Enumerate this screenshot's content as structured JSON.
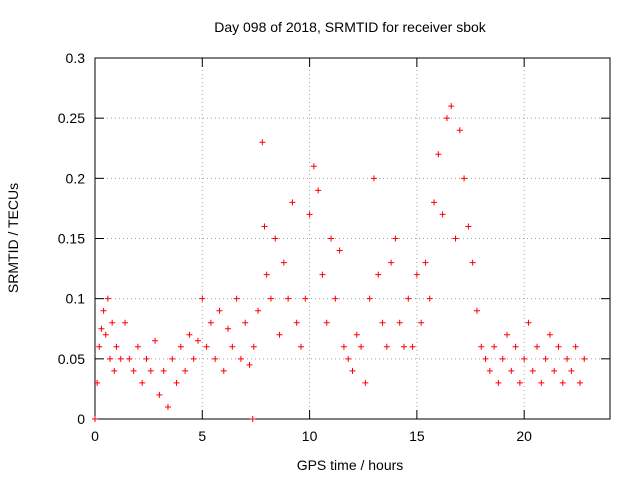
{
  "chart_data": {
    "type": "scatter",
    "title": "Day 098 of 2018, SRMTID for receiver sbok",
    "xlabel": "GPS time / hours",
    "ylabel": "SRMTID / TECUs",
    "xlim": [
      0,
      24
    ],
    "ylim": [
      0,
      0.3
    ],
    "xticks": [
      0,
      5,
      10,
      15,
      20
    ],
    "xtick_labels": [
      "0",
      "5",
      "10",
      "15",
      "20"
    ],
    "yticks": [
      0,
      0.05,
      0.1,
      0.15,
      0.2,
      0.25,
      0.3
    ],
    "ytick_labels": [
      "0",
      "0.05",
      "0.1",
      "0.15",
      "0.2",
      "0.25",
      "0.3"
    ],
    "grid": true,
    "marker": "+",
    "color": "#ff0000",
    "series": [
      {
        "name": "SRMTID",
        "points": [
          [
            0.0,
            0.0
          ],
          [
            0.1,
            0.03
          ],
          [
            0.2,
            0.06
          ],
          [
            0.3,
            0.075
          ],
          [
            0.4,
            0.09
          ],
          [
            0.5,
            0.07
          ],
          [
            0.6,
            0.1
          ],
          [
            0.7,
            0.05
          ],
          [
            0.8,
            0.08
          ],
          [
            0.9,
            0.04
          ],
          [
            1.0,
            0.06
          ],
          [
            1.2,
            0.05
          ],
          [
            1.4,
            0.08
          ],
          [
            1.6,
            0.05
          ],
          [
            1.8,
            0.04
          ],
          [
            2.0,
            0.06
          ],
          [
            2.2,
            0.03
          ],
          [
            2.4,
            0.05
          ],
          [
            2.6,
            0.04
          ],
          [
            2.8,
            0.065
          ],
          [
            3.0,
            0.02
          ],
          [
            3.2,
            0.04
          ],
          [
            3.4,
            0.01
          ],
          [
            3.6,
            0.05
          ],
          [
            3.8,
            0.03
          ],
          [
            4.0,
            0.06
          ],
          [
            4.2,
            0.04
          ],
          [
            4.4,
            0.07
          ],
          [
            4.6,
            0.05
          ],
          [
            4.8,
            0.065
          ],
          [
            5.0,
            0.1
          ],
          [
            5.2,
            0.06
          ],
          [
            5.4,
            0.08
          ],
          [
            5.6,
            0.05
          ],
          [
            5.8,
            0.09
          ],
          [
            6.0,
            0.04
          ],
          [
            6.2,
            0.075
          ],
          [
            6.4,
            0.06
          ],
          [
            6.6,
            0.1
          ],
          [
            6.8,
            0.05
          ],
          [
            7.0,
            0.08
          ],
          [
            7.2,
            0.045
          ],
          [
            7.35,
            0.0
          ],
          [
            7.4,
            0.06
          ],
          [
            7.6,
            0.09
          ],
          [
            7.8,
            0.23
          ],
          [
            7.9,
            0.16
          ],
          [
            8.0,
            0.12
          ],
          [
            8.2,
            0.1
          ],
          [
            8.4,
            0.15
          ],
          [
            8.6,
            0.07
          ],
          [
            8.8,
            0.13
          ],
          [
            9.0,
            0.1
          ],
          [
            9.2,
            0.18
          ],
          [
            9.4,
            0.08
          ],
          [
            9.6,
            0.06
          ],
          [
            9.8,
            0.1
          ],
          [
            10.0,
            0.17
          ],
          [
            10.2,
            0.21
          ],
          [
            10.4,
            0.19
          ],
          [
            10.6,
            0.12
          ],
          [
            10.8,
            0.08
          ],
          [
            11.0,
            0.15
          ],
          [
            11.2,
            0.1
          ],
          [
            11.4,
            0.14
          ],
          [
            11.6,
            0.06
          ],
          [
            11.8,
            0.05
          ],
          [
            12.0,
            0.04
          ],
          [
            12.2,
            0.07
          ],
          [
            12.4,
            0.06
          ],
          [
            12.6,
            0.03
          ],
          [
            12.8,
            0.1
          ],
          [
            13.0,
            0.2
          ],
          [
            13.2,
            0.12
          ],
          [
            13.4,
            0.08
          ],
          [
            13.6,
            0.06
          ],
          [
            13.8,
            0.13
          ],
          [
            14.0,
            0.15
          ],
          [
            14.2,
            0.08
          ],
          [
            14.4,
            0.06
          ],
          [
            14.6,
            0.1
          ],
          [
            14.8,
            0.06
          ],
          [
            15.0,
            0.12
          ],
          [
            15.2,
            0.08
          ],
          [
            15.4,
            0.13
          ],
          [
            15.6,
            0.1
          ],
          [
            15.8,
            0.18
          ],
          [
            16.0,
            0.22
          ],
          [
            16.2,
            0.17
          ],
          [
            16.4,
            0.25
          ],
          [
            16.6,
            0.26
          ],
          [
            16.8,
            0.15
          ],
          [
            17.0,
            0.24
          ],
          [
            17.2,
            0.2
          ],
          [
            17.4,
            0.16
          ],
          [
            17.6,
            0.13
          ],
          [
            17.8,
            0.09
          ],
          [
            18.0,
            0.06
          ],
          [
            18.2,
            0.05
          ],
          [
            18.4,
            0.04
          ],
          [
            18.6,
            0.06
          ],
          [
            18.8,
            0.03
          ],
          [
            19.0,
            0.05
          ],
          [
            19.2,
            0.07
          ],
          [
            19.4,
            0.04
          ],
          [
            19.6,
            0.06
          ],
          [
            19.8,
            0.03
          ],
          [
            20.0,
            0.05
          ],
          [
            20.2,
            0.08
          ],
          [
            20.4,
            0.04
          ],
          [
            20.6,
            0.06
          ],
          [
            20.8,
            0.03
          ],
          [
            21.0,
            0.05
          ],
          [
            21.2,
            0.07
          ],
          [
            21.4,
            0.04
          ],
          [
            21.6,
            0.06
          ],
          [
            21.8,
            0.03
          ],
          [
            22.0,
            0.05
          ],
          [
            22.2,
            0.04
          ],
          [
            22.4,
            0.06
          ],
          [
            22.6,
            0.03
          ],
          [
            22.8,
            0.05
          ]
        ]
      }
    ]
  }
}
